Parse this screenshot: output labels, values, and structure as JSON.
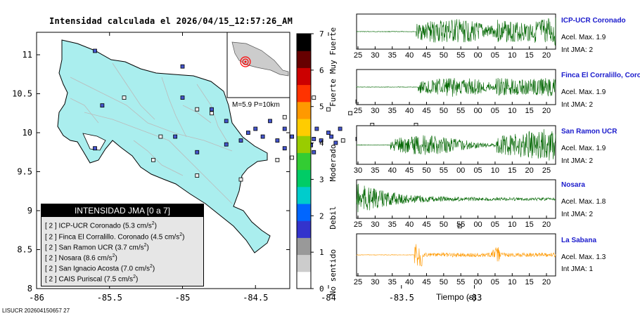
{
  "map": {
    "title": "Intensidad calculada el 2026/04/15_12:57:26_AM",
    "footer_id": "LISUCR 202604150657 27",
    "inset_label": "M=5.9 P=10km",
    "x_ticks": [
      "-86",
      "-85.5",
      "-85",
      "-84.5",
      "-84",
      "-83.5",
      "-83"
    ],
    "y_ticks": [
      "11",
      "10.5",
      "10",
      "9.5",
      "9",
      "8.5",
      "8"
    ],
    "legend": {
      "title": "INTENSIDAD JMA [0 a 7]",
      "rows": [
        {
          "int": "[ 2 ]",
          "name": "ICP-UCR Coronado",
          "accel": "(5.3 cm/s",
          "sup": "2",
          "close": ")"
        },
        {
          "int": "[ 2 ]",
          "name": "Finca El Corralillo. Coronado",
          "accel": "(4.5 cm/s",
          "sup": "2",
          "close": ")"
        },
        {
          "int": "[ 2 ]",
          "name": "San Ramon UCR",
          "accel": "(3.7 cm/s",
          "sup": "2",
          "close": ")"
        },
        {
          "int": "[ 2 ]",
          "name": "Nosara",
          "accel": "(8.6 cm/s",
          "sup": "2",
          "close": ")"
        },
        {
          "int": "[ 2 ]",
          "name": "San Ignacio Acosta",
          "accel": "(7.0 cm/s",
          "sup": "2",
          "close": ")"
        },
        {
          "int": "[ 2 ]",
          "name": "CAIS Puriscal",
          "accel": "(7.5 cm/s",
          "sup": "2",
          "close": ")"
        }
      ]
    }
  },
  "scale": {
    "ticks": [
      "0",
      "1",
      "2",
      "3",
      "4",
      "5",
      "6",
      "7"
    ],
    "labels": [
      "No sentido",
      "Debil",
      "Moderado",
      "Fuerte",
      "Muy Fuerte"
    ],
    "colors": [
      "#ffffff",
      "#cccccc",
      "#999999",
      "#3333cc",
      "#0066ff",
      "#00cccc",
      "#00cc66",
      "#33cc33",
      "#99cc00",
      "#ffcc00",
      "#ff9900",
      "#ff3300",
      "#cc0000",
      "#660000",
      "#000000"
    ]
  },
  "waveforms": {
    "time_label": "Tiempo (s)",
    "stations": [
      {
        "name": "ICP-UCR Coronado",
        "accel": "Acel. Max. 1.9",
        "jma": "Int JMA: 2",
        "color": "#006600",
        "ticks": [
          "25",
          "30",
          "35",
          "40",
          "45",
          "50",
          "55",
          "00",
          "05",
          "10",
          "15",
          "20"
        ]
      },
      {
        "name": "Finca El Corralillo, Coro",
        "accel": "Acel. Max. 1.9",
        "jma": "Int JMA: 2",
        "color": "#006600",
        "ticks": [
          "25",
          "30",
          "35",
          "40",
          "45",
          "50",
          "55",
          "00",
          "05",
          "10",
          "15",
          "20"
        ]
      },
      {
        "name": "San Ramon UCR",
        "accel": "Acel. Max. 1.9",
        "jma": "Int JMA: 2",
        "color": "#006600",
        "ticks": [
          "30",
          "35",
          "40",
          "45",
          "50",
          "55",
          "00",
          "05",
          "10",
          "15",
          "20",
          "25"
        ]
      },
      {
        "name": "Nosara",
        "accel": "Acel. Max. 1.8",
        "jma": "Int JMA: 2",
        "color": "#006600",
        "ticks": [
          "25",
          "30",
          "35",
          "40",
          "45",
          "50",
          "55",
          "00",
          "05",
          "10",
          "15",
          "20"
        ]
      },
      {
        "name": "La Sabana",
        "accel": "Acel. Max. 1.3",
        "jma": "Int JMA: 1",
        "color": "#ff9900",
        "ticks": [
          "25",
          "30",
          "35",
          "40",
          "45",
          "50",
          "55",
          "00",
          "05",
          "10",
          "15",
          "20"
        ]
      }
    ]
  },
  "chart_data": [
    {
      "type": "scatter",
      "title": "Intensidad calculada el 2026/04/15_12:57:26_AM",
      "xlabel": "",
      "ylabel": "",
      "xlim": [
        -86,
        -82.5
      ],
      "ylim": [
        8,
        11.3
      ],
      "series": [
        {
          "name": "estaciones intensidad 2",
          "points": [
            [
              -85.6,
              11.05
            ],
            [
              -85.0,
              10.85
            ],
            [
              -85.55,
              10.35
            ],
            [
              -85.6,
              9.8
            ],
            [
              -85.0,
              10.45
            ],
            [
              -85.05,
              9.95
            ],
            [
              -84.8,
              10.3
            ],
            [
              -84.7,
              9.85
            ],
            [
              -84.9,
              9.75
            ],
            [
              -84.55,
              10.0
            ],
            [
              -84.4,
              10.15
            ],
            [
              -84.3,
              10.05
            ],
            [
              -84.25,
              9.95
            ],
            [
              -84.2,
              10.15
            ],
            [
              -84.15,
              9.98
            ],
            [
              -84.1,
              9.92
            ],
            [
              -84.08,
              10.05
            ],
            [
              -84.05,
              9.9
            ],
            [
              -84.0,
              10.0
            ],
            [
              -83.98,
              9.95
            ],
            [
              -83.95,
              9.87
            ],
            [
              -84.12,
              9.84
            ],
            [
              -84.2,
              9.88
            ],
            [
              -84.35,
              9.9
            ],
            [
              -84.45,
              9.95
            ],
            [
              -84.5,
              10.05
            ],
            [
              -84.3,
              9.8
            ],
            [
              -84.1,
              9.75
            ],
            [
              -83.92,
              10.05
            ],
            [
              -83.8,
              9.92
            ],
            [
              -84.6,
              9.9
            ],
            [
              -84.7,
              10.15
            ],
            [
              -83.55,
              8.95
            ],
            [
              -83.05,
              8.6
            ]
          ]
        },
        {
          "name": "estaciones intensidad 1",
          "points": [
            [
              -85.2,
              9.65
            ],
            [
              -85.4,
              10.45
            ],
            [
              -84.8,
              10.25
            ],
            [
              -84.9,
              10.3
            ],
            [
              -84.5,
              10.6
            ],
            [
              -84.1,
              10.45
            ],
            [
              -84.0,
              10.3
            ],
            [
              -83.85,
              10.25
            ],
            [
              -83.8,
              10.4
            ],
            [
              -83.9,
              9.9
            ],
            [
              -84.25,
              9.68
            ],
            [
              -84.15,
              9.55
            ],
            [
              -84.35,
              9.65
            ],
            [
              -83.7,
              9.85
            ],
            [
              -83.5,
              9.95
            ],
            [
              -83.4,
              10.1
            ],
            [
              -83.2,
              10.05
            ],
            [
              -83.6,
              10.05
            ],
            [
              -84.6,
              9.4
            ],
            [
              -84.9,
              9.45
            ],
            [
              -85.15,
              9.95
            ],
            [
              -83.25,
              9.25
            ],
            [
              -83.35,
              9.05
            ],
            [
              -83.1,
              8.8
            ],
            [
              -83.0,
              8.55
            ],
            [
              -84.3,
              10.2
            ],
            [
              -83.7,
              10.1
            ],
            [
              -83.75,
              9.75
            ]
          ]
        }
      ]
    },
    {
      "type": "line",
      "title": "Sismogramas",
      "xlabel": "Tiempo (s)",
      "series": [
        {
          "name": "ICP-UCR Coronado",
          "peak_accel": 1.9,
          "jma": 2,
          "onset_s": 43
        },
        {
          "name": "Finca El Corralillo, Coro",
          "peak_accel": 1.9,
          "jma": 2,
          "onset_s": 43
        },
        {
          "name": "San Ramon UCR",
          "peak_accel": 1.9,
          "jma": 2,
          "onset_s": 35
        },
        {
          "name": "Nosara",
          "peak_accel": 1.8,
          "jma": 2,
          "onset_s": 25
        },
        {
          "name": "La Sabana",
          "peak_accel": 1.3,
          "jma": 1,
          "onset_s": 42
        }
      ]
    }
  ]
}
